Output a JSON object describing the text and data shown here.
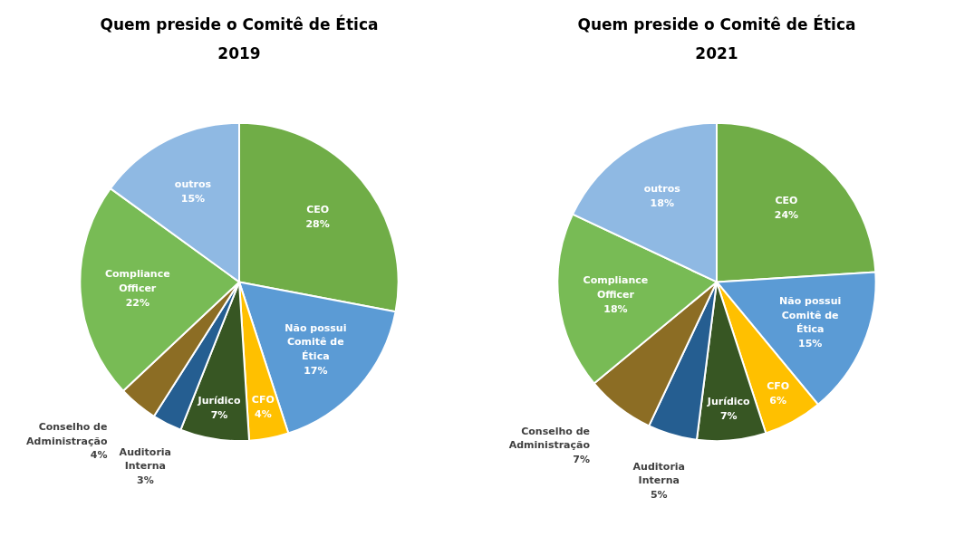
{
  "chart_data": [
    {
      "type": "pie",
      "title": "Quem preside o Comitê de Ética",
      "subtitle": "2019",
      "categories": [
        "CEO",
        "Não possui Comitê de Ética",
        "CFO",
        "Jurídico",
        "Auditoria Interna",
        "Conselho de Administração",
        "Compliance Officer",
        "outros"
      ],
      "values": [
        28,
        17,
        4,
        7,
        3,
        4,
        22,
        15
      ],
      "value_labels": [
        "28%",
        "17%",
        "4%",
        "7%",
        "3%",
        "4%",
        "22%",
        "15%"
      ],
      "colors": [
        "#70ad47",
        "#5b9bd5",
        "#ffc000",
        "#375623",
        "#255e91",
        "#8c6d24",
        "#78bb55",
        "#8fb9e3"
      ]
    },
    {
      "type": "pie",
      "title": "Quem preside o Comitê de Ética",
      "subtitle": "2021",
      "categories": [
        "CEO",
        "Não possui Comitê de Ética",
        "CFO",
        "Jurídico",
        "Auditoria Interna",
        "Conselho de Administração",
        "Compliance Officer",
        "outros"
      ],
      "values": [
        24,
        15,
        6,
        7,
        5,
        7,
        18,
        18
      ],
      "value_labels": [
        "24%",
        "15%",
        "6%",
        "7%",
        "5%",
        "7%",
        "18%",
        "18%"
      ],
      "colors": [
        "#70ad47",
        "#5b9bd5",
        "#ffc000",
        "#375623",
        "#255e91",
        "#8c6d24",
        "#78bb55",
        "#8fb9e3"
      ]
    }
  ]
}
